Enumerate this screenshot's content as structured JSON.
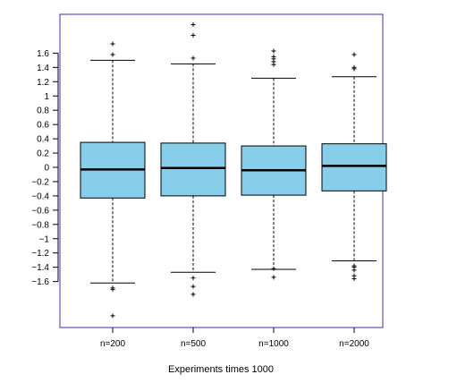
{
  "chart_data": {
    "type": "boxplot",
    "categories": [
      "n=200",
      "n=500",
      "n=1000",
      "n=2000"
    ],
    "xlabel": "Experiments times 1000",
    "ylabel": "",
    "title": "",
    "y_ticks": [
      "1.6",
      "1.4",
      "1.2",
      "1",
      "0.8",
      "0.6",
      "0.4",
      "0.2",
      "0",
      "−0.2",
      "−0.4",
      "−0.6",
      "−0.8",
      "−1",
      "−1.2",
      "−1.4",
      "−1.6"
    ],
    "y_tick_values": [
      1.6,
      1.4,
      1.2,
      1.0,
      0.8,
      0.6,
      0.4,
      0.2,
      0,
      -0.2,
      -0.4,
      -0.6,
      -0.8,
      -1.0,
      -1.2,
      -1.4,
      -1.6
    ],
    "ylim": [
      -2.24,
      2.14
    ],
    "grid": false,
    "box_color": "#87CEEB",
    "frame_color": "#3333aa",
    "boxes": [
      {
        "q1": -0.43,
        "median": -0.03,
        "q3": 0.35,
        "whisker_low": -1.62,
        "whisker_high": 1.5,
        "outliers": [
          1.73,
          1.58,
          -1.69,
          -1.71,
          -2.08
        ]
      },
      {
        "q1": -0.4,
        "median": -0.01,
        "q3": 0.34,
        "whisker_low": -1.47,
        "whisker_high": 1.45,
        "outliers": [
          2.0,
          1.85,
          1.53,
          -1.55,
          -1.67,
          -1.78
        ]
      },
      {
        "q1": -0.39,
        "median": -0.04,
        "q3": 0.3,
        "whisker_low": -1.43,
        "whisker_high": 1.25,
        "outliers": [
          1.63,
          1.55,
          1.52,
          1.48,
          1.44,
          -1.42,
          -1.54
        ]
      },
      {
        "q1": -0.33,
        "median": 0.02,
        "q3": 0.33,
        "whisker_low": -1.31,
        "whisker_high": 1.27,
        "outliers": [
          1.58,
          1.4,
          1.38,
          -1.38,
          -1.4,
          -1.44,
          -1.52,
          -1.56
        ]
      }
    ]
  }
}
